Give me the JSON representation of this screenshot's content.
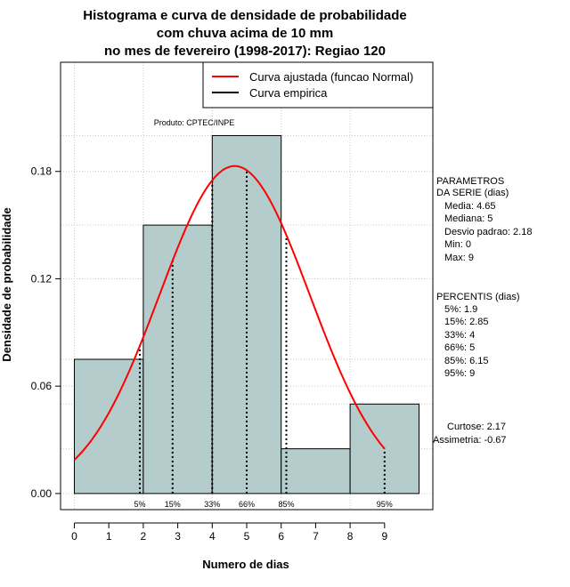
{
  "chart_data": {
    "type": "bar",
    "title_lines": [
      "Histograma e curva de densidade de probabilidade",
      "com chuva acima de 10 mm",
      "no mes de fevereiro (1998-2017): Regiao 120"
    ],
    "xlabel": "Numero de dias",
    "ylabel": "Densidade de probabilidade",
    "xlim": [
      -0.4,
      10.4
    ],
    "ylim": [
      -0.009,
      0.241
    ],
    "x_ticks": [
      0,
      1,
      2,
      3,
      4,
      5,
      6,
      7,
      8,
      9
    ],
    "y_ticks": [
      "0.00",
      "0.06",
      "0.12",
      "0.18"
    ],
    "y_tick_values": [
      0,
      0.06,
      0.12,
      0.18
    ],
    "grid": true,
    "bars": [
      {
        "x0": 0,
        "x1": 2,
        "density": 0.075
      },
      {
        "x0": 2,
        "x1": 4,
        "density": 0.15
      },
      {
        "x0": 4,
        "x1": 6,
        "density": 0.2
      },
      {
        "x0": 6,
        "x1": 8,
        "density": 0.025
      },
      {
        "x0": 8,
        "x1": 10,
        "density": 0.05
      }
    ],
    "normal_curve": {
      "name": "Curva ajustada (funcao Normal)",
      "color": "#ff0000",
      "mean": 4.65,
      "sd": 2.18,
      "x_from": 0,
      "x_to": 9
    },
    "percentile_lines": [
      {
        "label": "5%",
        "x": 1.9,
        "style": "dotted"
      },
      {
        "label": "15%",
        "x": 2.85,
        "style": "dotted"
      },
      {
        "label": "33%",
        "x": 4,
        "style": "dotted"
      },
      {
        "label": "66%",
        "x": 5,
        "style": "dotted"
      },
      {
        "label": "85%",
        "x": 6.15,
        "style": "dotted"
      },
      {
        "label": "95%",
        "x": 9,
        "style": "dotted"
      }
    ],
    "legend": {
      "position": "top-right",
      "entries": [
        {
          "label": "Curva ajustada (funcao Normal)",
          "color": "#ff0000"
        },
        {
          "label": "Curva empirica",
          "color": "#000000"
        }
      ]
    },
    "product_label": "Produto: CPTEC/INPE",
    "bar_color": "#b4cccc",
    "side_panel": {
      "params_title": [
        "PARAMETROS",
        "DA SERIE (dias)"
      ],
      "params": [
        "Media: 4.65",
        "Mediana: 5",
        "Desvio padrao: 2.18",
        "Min: 0",
        "Max: 9"
      ],
      "percentis_title": "PERCENTIS (dias)",
      "percentis": [
        "5%: 1.9",
        "15%: 2.85",
        "33%: 4",
        "66%: 5",
        "85%: 6.15",
        "95%: 9"
      ],
      "stats": [
        "Curtose: 2.17",
        "Assimetria: -0.67"
      ]
    }
  }
}
